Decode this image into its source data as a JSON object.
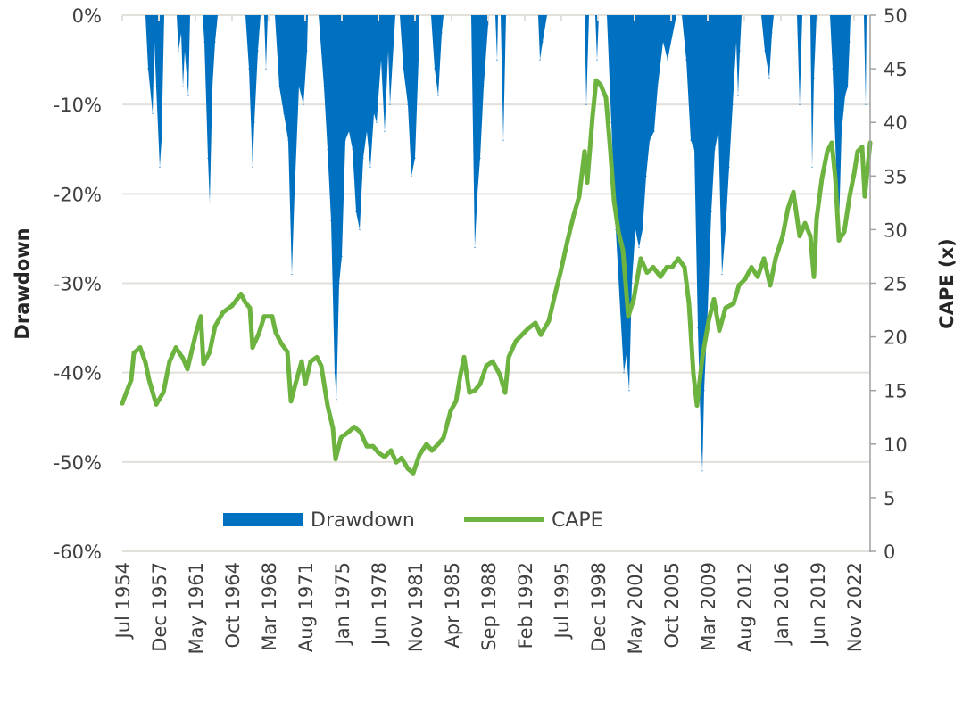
{
  "chart_data": {
    "type": "area+line",
    "title": "",
    "x_unit": "months since Jul 1954",
    "x_range": [
      0,
      838
    ],
    "x_tick_labels": [
      "Jul 1954",
      "Dec 1957",
      "May 1961",
      "Oct 1964",
      "Mar 1968",
      "Aug 1971",
      "Jan 1975",
      "Jun 1978",
      "Nov 1981",
      "Apr 1985",
      "Sep 1988",
      "Feb 1992",
      "Jul 1995",
      "Dec 1998",
      "May 2002",
      "Oct 2005",
      "Mar 2009",
      "Aug 2012",
      "Jan 2016",
      "Jun 2019",
      "Nov 2022"
    ],
    "x_tick_step_months": 41,
    "left_axis": {
      "label": "Drawdown",
      "range": [
        -60,
        0
      ],
      "ticks": [
        "0%",
        "-10%",
        "-20%",
        "-30%",
        "-40%",
        "-50%",
        "-60%"
      ]
    },
    "right_axis": {
      "label": "CAPE (x)",
      "range": [
        0,
        50
      ],
      "ticks": [
        "50",
        "45",
        "40",
        "35",
        "30",
        "25",
        "20",
        "15",
        "10",
        "5",
        "0"
      ]
    },
    "legend": {
      "placement": "bottom-center",
      "items": [
        "Drawdown",
        "CAPE"
      ]
    },
    "grid": true,
    "colors": {
      "drawdown": "#0070c0",
      "cape": "#6db33f",
      "grid": "#e3e0dc",
      "axis": "#a0a0a0"
    },
    "series": [
      {
        "name": "Drawdown",
        "axis": "left",
        "type": "area",
        "points": [
          [
            0,
            0
          ],
          [
            26,
            0
          ],
          [
            29,
            -6
          ],
          [
            34,
            -11
          ],
          [
            36,
            -3
          ],
          [
            38,
            -8
          ],
          [
            42,
            -17
          ],
          [
            44,
            -14
          ],
          [
            47,
            0
          ],
          [
            61,
            0
          ],
          [
            63,
            -4
          ],
          [
            66,
            -2
          ],
          [
            68,
            -8
          ],
          [
            70,
            -4
          ],
          [
            74,
            -9
          ],
          [
            76,
            0
          ],
          [
            90,
            0
          ],
          [
            92,
            -3
          ],
          [
            96,
            -16
          ],
          [
            98,
            -21
          ],
          [
            101,
            -8
          ],
          [
            104,
            -3
          ],
          [
            107,
            0
          ],
          [
            138,
            0
          ],
          [
            142,
            -6
          ],
          [
            146,
            -17
          ],
          [
            148,
            -12
          ],
          [
            152,
            -4
          ],
          [
            155,
            0
          ],
          [
            159,
            0
          ],
          [
            161,
            -6
          ],
          [
            163,
            0
          ],
          [
            171,
            0
          ],
          [
            176,
            -8
          ],
          [
            181,
            -11
          ],
          [
            186,
            -14
          ],
          [
            190,
            -29
          ],
          [
            193,
            -20
          ],
          [
            198,
            -8
          ],
          [
            203,
            -10
          ],
          [
            207,
            -4
          ],
          [
            208,
            0
          ],
          [
            220,
            0
          ],
          [
            226,
            -8
          ],
          [
            230,
            -15
          ],
          [
            234,
            -23
          ],
          [
            238,
            -40
          ],
          [
            240,
            -43
          ],
          [
            243,
            -30
          ],
          [
            246,
            -27
          ],
          [
            250,
            -14
          ],
          [
            254,
            -13
          ],
          [
            258,
            -15
          ],
          [
            262,
            -22
          ],
          [
            266,
            -24
          ],
          [
            270,
            -16
          ],
          [
            274,
            -13
          ],
          [
            278,
            -17
          ],
          [
            282,
            -11
          ],
          [
            285,
            -12
          ],
          [
            290,
            -5
          ],
          [
            294,
            -13
          ],
          [
            298,
            -4
          ],
          [
            300,
            -10
          ],
          [
            306,
            0
          ],
          [
            311,
            0
          ],
          [
            315,
            -6
          ],
          [
            320,
            -10
          ],
          [
            324,
            -18
          ],
          [
            328,
            -16
          ],
          [
            332,
            -5
          ],
          [
            333,
            0
          ],
          [
            346,
            0
          ],
          [
            350,
            -6
          ],
          [
            354,
            -9
          ],
          [
            358,
            -2
          ],
          [
            360,
            0
          ],
          [
            391,
            0
          ],
          [
            395,
            -26
          ],
          [
            398,
            -20
          ],
          [
            401,
            -16
          ],
          [
            405,
            -8
          ],
          [
            410,
            -1
          ],
          [
            411,
            0
          ],
          [
            418,
            0
          ],
          [
            420,
            -5
          ],
          [
            421,
            0
          ],
          [
            424,
            0
          ],
          [
            427,
            -14
          ],
          [
            430,
            0
          ],
          [
            466,
            0
          ],
          [
            468,
            -5
          ],
          [
            471,
            -3
          ],
          [
            476,
            0
          ],
          [
            518,
            0
          ],
          [
            520,
            -10
          ],
          [
            523,
            0
          ],
          [
            530,
            0
          ],
          [
            532,
            -5
          ],
          [
            534,
            0
          ],
          [
            543,
            0
          ],
          [
            548,
            -12
          ],
          [
            553,
            -24
          ],
          [
            558,
            -33
          ],
          [
            562,
            -40
          ],
          [
            565,
            -38
          ],
          [
            568,
            -42
          ],
          [
            571,
            -30
          ],
          [
            575,
            -24
          ],
          [
            579,
            -26
          ],
          [
            583,
            -24
          ],
          [
            587,
            -18
          ],
          [
            591,
            -14
          ],
          [
            596,
            -13
          ],
          [
            600,
            -8
          ],
          [
            606,
            -3
          ],
          [
            611,
            -5
          ],
          [
            621,
            0
          ],
          [
            627,
            0
          ],
          [
            632,
            -5
          ],
          [
            637,
            -14
          ],
          [
            641,
            -15
          ],
          [
            645,
            -35
          ],
          [
            648,
            -46
          ],
          [
            650,
            -51
          ],
          [
            652,
            -42
          ],
          [
            656,
            -33
          ],
          [
            660,
            -22
          ],
          [
            664,
            -15
          ],
          [
            668,
            -13
          ],
          [
            672,
            -29
          ],
          [
            676,
            -24
          ],
          [
            680,
            -17
          ],
          [
            684,
            -10
          ],
          [
            688,
            -3
          ],
          [
            690,
            -9
          ],
          [
            692,
            -4
          ],
          [
            694,
            0
          ],
          [
            716,
            0
          ],
          [
            720,
            -4
          ],
          [
            725,
            -7
          ],
          [
            728,
            -2
          ],
          [
            730,
            0
          ],
          [
            756,
            0
          ],
          [
            759,
            -10
          ],
          [
            762,
            0
          ],
          [
            771,
            0
          ],
          [
            773,
            -17
          ],
          [
            775,
            -7
          ],
          [
            778,
            0
          ],
          [
            793,
            0
          ],
          [
            796,
            -6
          ],
          [
            800,
            -17
          ],
          [
            803,
            -24
          ],
          [
            806,
            -13
          ],
          [
            810,
            -9
          ],
          [
            813,
            -8
          ],
          [
            815,
            -3
          ],
          [
            816,
            0
          ],
          [
            831,
            0
          ],
          [
            833,
            -10
          ],
          [
            834,
            0
          ],
          [
            838,
            0
          ]
        ]
      },
      {
        "name": "CAPE",
        "axis": "right",
        "type": "line",
        "points": [
          [
            0,
            13.8
          ],
          [
            10,
            16
          ],
          [
            13,
            18.5
          ],
          [
            20,
            19
          ],
          [
            26,
            17.6
          ],
          [
            30,
            16
          ],
          [
            38,
            13.7
          ],
          [
            46,
            14.8
          ],
          [
            53,
            17.7
          ],
          [
            60,
            19
          ],
          [
            68,
            18
          ],
          [
            73,
            17
          ],
          [
            83,
            20.5
          ],
          [
            88,
            21.9
          ],
          [
            91,
            17.5
          ],
          [
            98,
            18.6
          ],
          [
            104,
            21
          ],
          [
            113,
            22.3
          ],
          [
            123,
            22.9
          ],
          [
            133,
            24
          ],
          [
            138,
            23.2
          ],
          [
            143,
            22.7
          ],
          [
            146,
            19
          ],
          [
            153,
            20.3
          ],
          [
            159,
            21.9
          ],
          [
            168,
            21.9
          ],
          [
            172,
            20.4
          ],
          [
            178,
            19.4
          ],
          [
            185,
            18.6
          ],
          [
            189,
            14
          ],
          [
            194,
            15.6
          ],
          [
            201,
            17.7
          ],
          [
            205,
            15.6
          ],
          [
            211,
            17.7
          ],
          [
            218,
            18.1
          ],
          [
            223,
            17.3
          ],
          [
            230,
            13.6
          ],
          [
            236,
            11.5
          ],
          [
            239,
            8.6
          ],
          [
            245,
            10.6
          ],
          [
            253,
            11.1
          ],
          [
            260,
            11.6
          ],
          [
            267,
            11.1
          ],
          [
            274,
            9.8
          ],
          [
            281,
            9.8
          ],
          [
            287,
            9.2
          ],
          [
            294,
            8.8
          ],
          [
            301,
            9.4
          ],
          [
            307,
            8.3
          ],
          [
            313,
            8.7
          ],
          [
            320,
            7.7
          ],
          [
            326,
            7.3
          ],
          [
            333,
            9
          ],
          [
            341,
            10
          ],
          [
            347,
            9.4
          ],
          [
            354,
            10
          ],
          [
            360,
            10.6
          ],
          [
            368,
            13.1
          ],
          [
            374,
            14
          ],
          [
            379,
            16.5
          ],
          [
            383,
            18.1
          ],
          [
            389,
            14.8
          ],
          [
            395,
            15
          ],
          [
            401,
            15.6
          ],
          [
            408,
            17.3
          ],
          [
            415,
            17.7
          ],
          [
            423,
            16.5
          ],
          [
            429,
            14.8
          ],
          [
            433,
            18.1
          ],
          [
            441,
            19.6
          ],
          [
            448,
            20.2
          ],
          [
            455,
            20.8
          ],
          [
            463,
            21.3
          ],
          [
            469,
            20.2
          ],
          [
            478,
            21.5
          ],
          [
            485,
            24
          ],
          [
            491,
            26
          ],
          [
            499,
            29
          ],
          [
            506,
            31.4
          ],
          [
            512,
            33.1
          ],
          [
            518,
            37.3
          ],
          [
            521,
            34.4
          ],
          [
            527,
            40.6
          ],
          [
            531,
            43.9
          ],
          [
            536,
            43.5
          ],
          [
            542,
            42.3
          ],
          [
            547,
            37.3
          ],
          [
            551,
            32.7
          ],
          [
            556,
            29.8
          ],
          [
            561,
            28.1
          ],
          [
            567,
            21.9
          ],
          [
            573,
            23.5
          ],
          [
            581,
            27.3
          ],
          [
            588,
            26
          ],
          [
            595,
            26.5
          ],
          [
            603,
            25.6
          ],
          [
            610,
            26.5
          ],
          [
            616,
            26.5
          ],
          [
            623,
            27.3
          ],
          [
            630,
            26.5
          ],
          [
            635,
            23.1
          ],
          [
            640,
            16.5
          ],
          [
            644,
            13.6
          ],
          [
            650,
            18.1
          ],
          [
            657,
            21.5
          ],
          [
            663,
            23.5
          ],
          [
            669,
            20.6
          ],
          [
            676,
            22.7
          ],
          [
            685,
            23.1
          ],
          [
            691,
            24.8
          ],
          [
            698,
            25.4
          ],
          [
            705,
            26.5
          ],
          [
            712,
            25.6
          ],
          [
            719,
            27.3
          ],
          [
            726,
            24.8
          ],
          [
            732,
            27.3
          ],
          [
            740,
            29.4
          ],
          [
            746,
            32
          ],
          [
            752,
            33.5
          ],
          [
            759,
            29.4
          ],
          [
            765,
            30.6
          ],
          [
            771,
            29.4
          ],
          [
            775,
            25.6
          ],
          [
            778,
            31
          ],
          [
            784,
            34.8
          ],
          [
            790,
            37.3
          ],
          [
            795,
            38.1
          ],
          [
            799,
            34.8
          ],
          [
            803,
            29
          ],
          [
            809,
            29.8
          ],
          [
            815,
            33.1
          ],
          [
            820,
            35.2
          ],
          [
            824,
            37.3
          ],
          [
            829,
            37.7
          ],
          [
            832,
            33.1
          ],
          [
            838,
            38.1
          ]
        ]
      }
    ]
  }
}
